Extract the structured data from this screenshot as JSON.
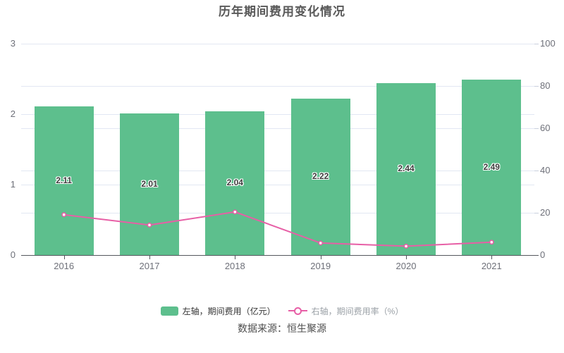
{
  "title": "历年期间费用变化情况",
  "source_note": "数据来源：恒生聚源",
  "legend": {
    "items": [
      {
        "label": "左轴，期间费用（亿元）",
        "type": "bar"
      },
      {
        "label": "右轴，期间费用率（%）",
        "type": "line"
      }
    ]
  },
  "colors": {
    "bar": "#5dbf8d",
    "line": "#e75fa6",
    "marker_fill": "#ffffff",
    "grid": "#e2e7f3",
    "axis_line": "#54575d",
    "axis_label": "#6e7079",
    "bar_value_label": "#3d3d3d",
    "title": "#595959",
    "legend_text_left": "#333333",
    "legend_text_right": "#9aa0a6",
    "source_text": "#4d4d4d"
  },
  "chart_data": {
    "type": "bar",
    "subtype": "bar+line dual-axis combo",
    "title": "历年期间费用变化情况",
    "categories": [
      "2016",
      "2017",
      "2018",
      "2019",
      "2020",
      "2021"
    ],
    "series": [
      {
        "name": "左轴，期间费用（亿元）",
        "type": "bar",
        "yaxis": "left",
        "values": [
          2.11,
          2.01,
          2.04,
          2.22,
          2.44,
          2.49
        ],
        "data_labels": [
          "2.11",
          "2.01",
          "2.04",
          "2.22",
          "2.44",
          "2.49"
        ]
      },
      {
        "name": "右轴，期间费用率（%）",
        "type": "line",
        "yaxis": "right",
        "values": [
          19.1,
          14.2,
          20.4,
          5.7,
          4.2,
          6.1
        ]
      }
    ],
    "left_axis": {
      "min": 0,
      "max": 3,
      "tick_labels": [
        "0",
        "1",
        "2",
        "3"
      ]
    },
    "right_axis": {
      "min": 0,
      "max": 100,
      "tick_labels": [
        "0",
        "20",
        "40",
        "60",
        "80",
        "100"
      ]
    },
    "grid": true,
    "legend_position": "bottom"
  }
}
